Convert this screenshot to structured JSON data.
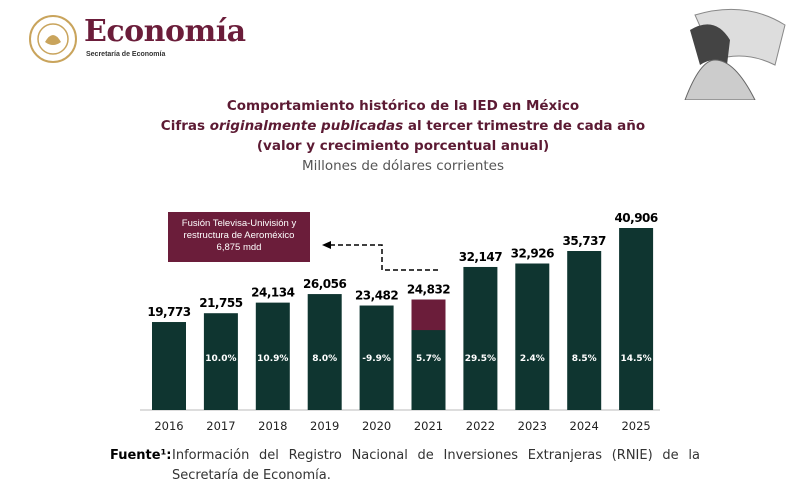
{
  "header": {
    "logo_title": "Economía",
    "logo_subtitle": "Secretaría de Economía"
  },
  "title_lines": [
    "Comportamiento histórico de la IED en México",
    "al tercer trimestre de cada año",
    "(valor y crecimiento porcentual anual)",
    "Millones de dólares corrientes"
  ],
  "title_line2_prefix": "Cifras ",
  "title_line2_italic": "originalmente publicadas",
  "chart_data": {
    "type": "bar",
    "categories": [
      "2016",
      "2017",
      "2018",
      "2019",
      "2020",
      "2021",
      "2022",
      "2023",
      "2024",
      "2025"
    ],
    "values": [
      19773,
      21755,
      24134,
      26056,
      23482,
      24832,
      32147,
      32926,
      35737,
      40906
    ],
    "value_labels": [
      "19,773",
      "21,755",
      "24,134",
      "26,056",
      "23,482",
      "24,832",
      "32,147",
      "32,926",
      "35,737",
      "40,906"
    ],
    "growth_labels": [
      "",
      "10.0%",
      "10.9%",
      "8.0%",
      "-9.9%",
      "5.7%",
      "29.5%",
      "2.4%",
      "8.5%",
      "14.5%"
    ],
    "highlight": {
      "category": "2021",
      "value": 6875,
      "color": "#6b1d3a"
    },
    "annotation": [
      "Fusión Televisa-Univisión y",
      "restructura de Aeroméxico",
      "6,875 mdd"
    ],
    "bar_color": "#0f3530",
    "ylim": [
      0,
      42000
    ]
  },
  "source": {
    "label": "Fuente¹:",
    "text": "Información del Registro Nacional de Inversiones Extranjeras (RNIE) de la Secretaría de Economía."
  }
}
